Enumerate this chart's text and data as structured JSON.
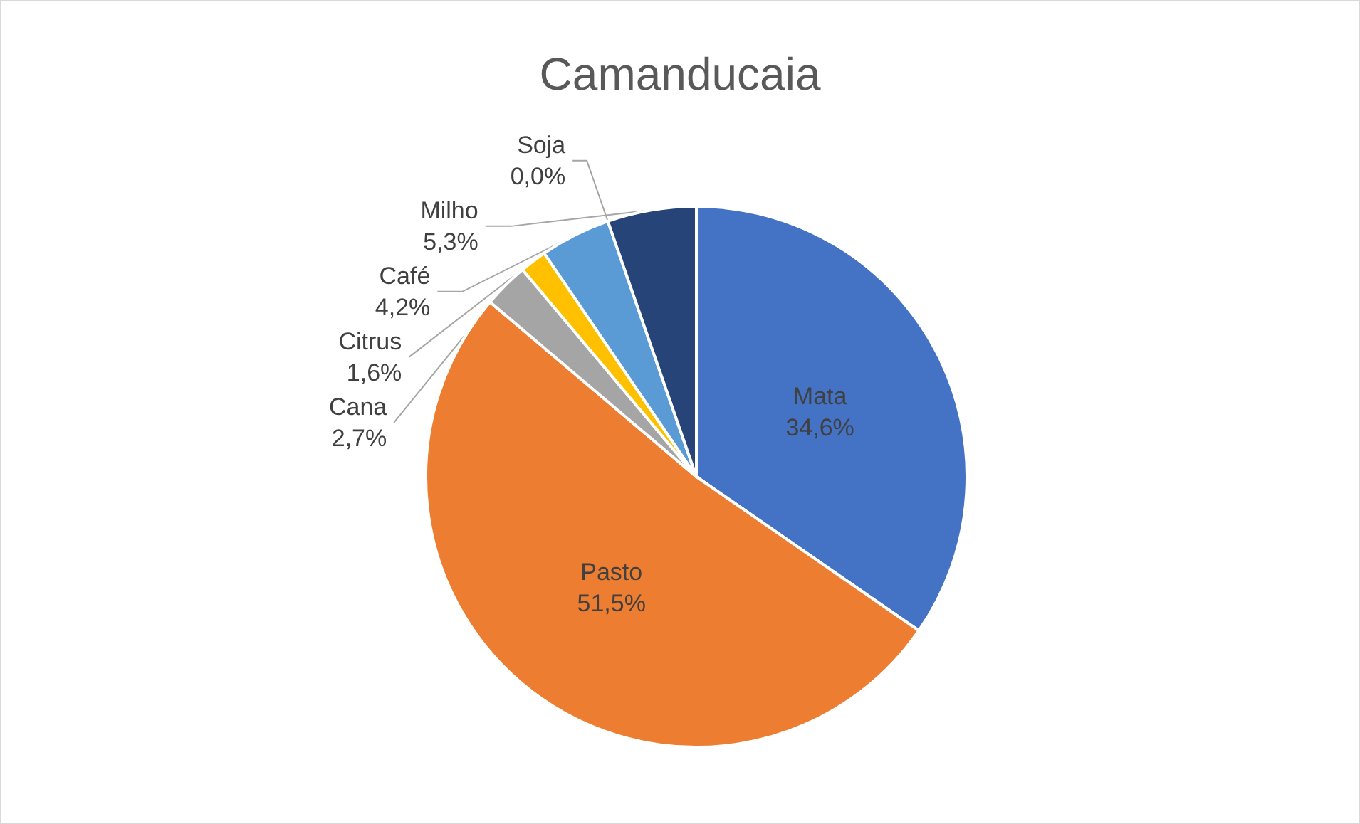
{
  "chart_data": {
    "type": "pie",
    "title": "Camanducaia",
    "categories": [
      "Mata",
      "Pasto",
      "Cana",
      "Citrus",
      "Café",
      "Soja",
      "Milho"
    ],
    "values": [
      34.6,
      51.5,
      2.7,
      1.6,
      4.2,
      0.0,
      5.3
    ],
    "value_labels": [
      "34,6%",
      "51,5%",
      "2,7%",
      "1,6%",
      "4,2%",
      "0,0%",
      "5,3%"
    ],
    "colors": [
      "#4472c4",
      "#ed7d31",
      "#a5a5a5",
      "#ffc000",
      "#5b9bd5",
      "#70ad47",
      "#264478"
    ],
    "legend": false
  }
}
